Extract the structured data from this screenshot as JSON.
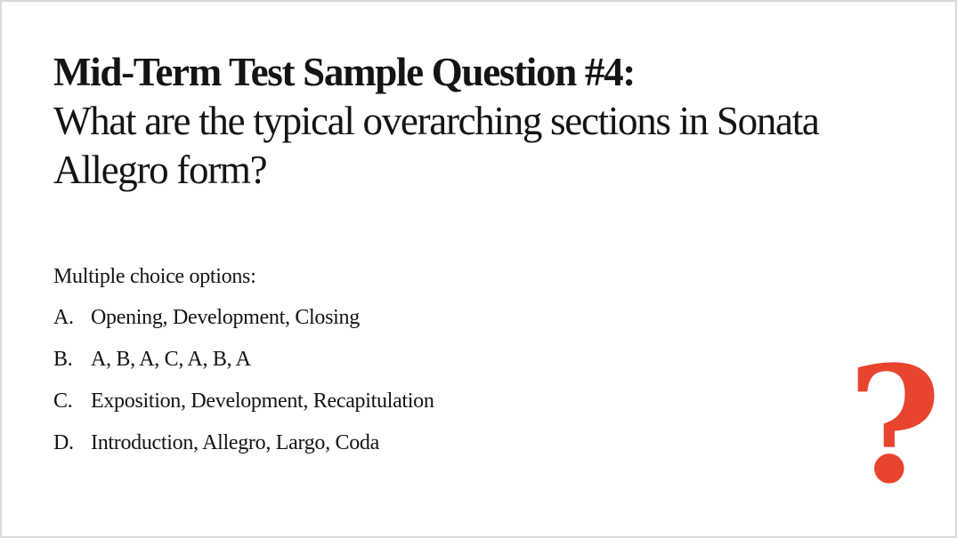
{
  "title": {
    "line1": "Mid-Term Test Sample Question #4:",
    "line2": "What are the typical overarching sections in Sonata",
    "line3": "Allegro form?"
  },
  "options_label": "Multiple choice options:",
  "options": [
    {
      "letter": "A.",
      "text": "Opening, Development, Closing"
    },
    {
      "letter": "B.",
      "text": "A, B, A, C, A, B, A"
    },
    {
      "letter": "C.",
      "text": "Exposition, Development, Recapitulation"
    },
    {
      "letter": "D.",
      "text": "Introduction, Allegro, Largo, Coda"
    }
  ],
  "decoration": {
    "glyph": "?",
    "color": "#e8442e"
  }
}
